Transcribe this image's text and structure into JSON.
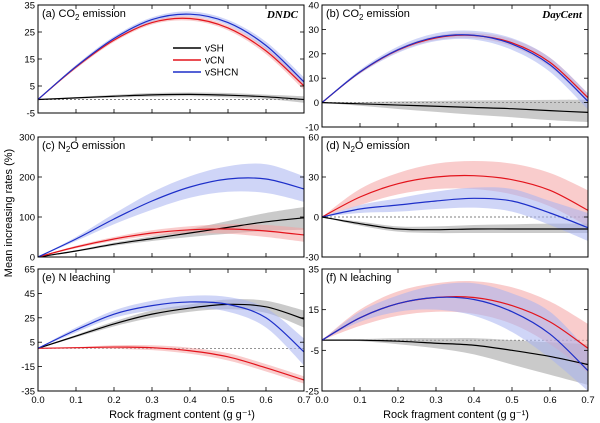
{
  "figure": {
    "ylabel": "Mean increasing rates (%)",
    "xlabel": "Rock fragment content (g g⁻¹)",
    "legend_location": "upper-center of panel (a)"
  },
  "chart_data": [
    {
      "id": "a",
      "type": "line",
      "title_prefix": "(a) CO",
      "title_sub": "2",
      "title_suffix": " emission",
      "model_label": "DNDC",
      "x": [
        0,
        0.1,
        0.2,
        0.3,
        0.4,
        0.5,
        0.6,
        0.7
      ],
      "xlim": [
        0,
        0.7
      ],
      "ylim": [
        -5,
        35
      ],
      "yticks": [
        -5,
        5,
        15,
        25,
        35
      ],
      "series": [
        {
          "name": "vSH",
          "color": "#000000",
          "band_color": "#9e9e9e",
          "values": [
            0,
            0.6,
            1.2,
            1.7,
            1.9,
            1.6,
            1.0,
            0
          ],
          "lower": [
            0,
            0.3,
            0.7,
            1.0,
            1.2,
            0.8,
            0.2,
            -1.2
          ],
          "upper": [
            0,
            0.9,
            1.7,
            2.4,
            2.6,
            2.4,
            1.8,
            1.2
          ]
        },
        {
          "name": "vCN",
          "color": "#e3141c",
          "band_color": "#f4a3a3",
          "values": [
            0,
            12,
            22,
            28.5,
            30,
            26.5,
            18,
            5
          ],
          "lower": [
            0,
            11.4,
            21.3,
            27.8,
            29.2,
            25.6,
            16.8,
            3.5
          ],
          "upper": [
            0,
            12.6,
            22.7,
            29.2,
            30.8,
            27.4,
            19.2,
            6.5
          ]
        },
        {
          "name": "vSHCN",
          "color": "#1d2fc9",
          "band_color": "#a7b3f0",
          "values": [
            0,
            12.2,
            22.6,
            29.6,
            31.6,
            28.5,
            20,
            6.5
          ],
          "lower": [
            0,
            11.6,
            21.8,
            28.8,
            30.8,
            27.5,
            18.6,
            4.8
          ],
          "upper": [
            0,
            12.8,
            23.4,
            30.4,
            32.6,
            29.5,
            21.4,
            8.2
          ]
        }
      ],
      "legend": true
    },
    {
      "id": "b",
      "type": "line",
      "title_prefix": "(b) CO",
      "title_sub": "2",
      "title_suffix": " emission",
      "model_label": "DayCent",
      "x": [
        0,
        0.1,
        0.2,
        0.3,
        0.4,
        0.5,
        0.6,
        0.7
      ],
      "xlim": [
        0,
        0.7
      ],
      "ylim": [
        -10,
        40
      ],
      "yticks": [
        -10,
        0,
        10,
        20,
        30,
        40
      ],
      "series": [
        {
          "name": "vSH",
          "color": "#000000",
          "band_color": "#9e9e9e",
          "values": [
            0,
            -0.5,
            -1,
            -1.5,
            -2,
            -2.5,
            -3.3,
            -4
          ],
          "lower": [
            0,
            -1.3,
            -2.6,
            -3.8,
            -5,
            -6,
            -7.2,
            -8
          ],
          "upper": [
            0,
            0.2,
            0.5,
            0.7,
            0.9,
            1,
            1.1,
            1.2
          ]
        },
        {
          "name": "vCN",
          "color": "#e3141c",
          "band_color": "#f4a3a3",
          "values": [
            0,
            12.5,
            21.5,
            26.5,
            27.5,
            24.5,
            16.5,
            2
          ],
          "lower": [
            0,
            12,
            20.8,
            25.6,
            26.4,
            23,
            14.6,
            0.2
          ],
          "upper": [
            0,
            13,
            22.2,
            27.4,
            28.6,
            26,
            18.4,
            3.8
          ]
        },
        {
          "name": "vSHCN",
          "color": "#1d2fc9",
          "band_color": "#a7b3f0",
          "values": [
            0,
            12.6,
            21.7,
            26.8,
            27.6,
            24,
            15.5,
            0.5
          ],
          "lower": [
            0,
            11.8,
            20.4,
            25.2,
            25.8,
            21.6,
            12.6,
            -2.8
          ],
          "upper": [
            0,
            13.4,
            23,
            28.4,
            29.4,
            26.4,
            18.4,
            3.8
          ]
        }
      ],
      "legend": false
    },
    {
      "id": "c",
      "type": "line",
      "title_prefix": "(c) N",
      "title_sub": "2",
      "title_suffix": "O emission",
      "model_label": "",
      "x": [
        0,
        0.1,
        0.2,
        0.3,
        0.4,
        0.5,
        0.6,
        0.7
      ],
      "xlim": [
        0,
        0.7
      ],
      "ylim": [
        0,
        300
      ],
      "yticks": [
        0,
        100,
        200,
        300
      ],
      "series": [
        {
          "name": "vSH",
          "color": "#000000",
          "band_color": "#9e9e9e",
          "values": [
            0,
            15,
            32,
            46,
            60,
            74,
            88,
            98
          ],
          "lower": [
            0,
            13,
            28,
            40,
            50,
            58,
            65,
            68
          ],
          "upper": [
            0,
            17,
            36,
            52,
            70,
            90,
            110,
            125
          ]
        },
        {
          "name": "vCN",
          "color": "#e3141c",
          "band_color": "#f4a3a3",
          "values": [
            0,
            25,
            45,
            60,
            68,
            70,
            65,
            55
          ],
          "lower": [
            0,
            22,
            40,
            53,
            59,
            58,
            50,
            38
          ],
          "upper": [
            0,
            28,
            50,
            67,
            77,
            82,
            80,
            72
          ]
        },
        {
          "name": "vSHCN",
          "color": "#1d2fc9",
          "band_color": "#a7b3f0",
          "values": [
            0,
            45,
            95,
            140,
            175,
            195,
            195,
            170
          ],
          "lower": [
            0,
            40,
            82,
            118,
            148,
            163,
            160,
            138
          ],
          "upper": [
            0,
            50,
            108,
            162,
            202,
            227,
            232,
            202
          ]
        }
      ],
      "legend": false
    },
    {
      "id": "d",
      "type": "line",
      "title_prefix": "(d) N",
      "title_sub": "2",
      "title_suffix": "O emission",
      "model_label": "",
      "x": [
        0,
        0.1,
        0.2,
        0.3,
        0.4,
        0.5,
        0.6,
        0.7
      ],
      "xlim": [
        0,
        0.7
      ],
      "ylim": [
        -30,
        60
      ],
      "yticks": [
        -30,
        0,
        30,
        60
      ],
      "series": [
        {
          "name": "vSH",
          "color": "#000000",
          "band_color": "#9e9e9e",
          "values": [
            0,
            -5,
            -9,
            -9.5,
            -9,
            -9,
            -9,
            -9
          ],
          "lower": [
            0,
            -6.5,
            -11,
            -12,
            -12,
            -12,
            -12,
            -12
          ],
          "upper": [
            0,
            -3.5,
            -7,
            -7,
            -6,
            -5.5,
            -5,
            -5
          ]
        },
        {
          "name": "vCN",
          "color": "#e3141c",
          "band_color": "#f4a3a3",
          "values": [
            0,
            15,
            25,
            30,
            31,
            28,
            20,
            5
          ],
          "lower": [
            0,
            9,
            17,
            21,
            21,
            17,
            8,
            -7
          ],
          "upper": [
            0,
            21,
            33,
            40,
            42,
            40,
            33,
            20
          ]
        },
        {
          "name": "vSHCN",
          "color": "#1d2fc9",
          "band_color": "#a7b3f0",
          "values": [
            0,
            6,
            9,
            12,
            14,
            12,
            3,
            -8
          ],
          "lower": [
            0,
            3,
            4,
            6,
            7,
            4,
            -6,
            -18
          ],
          "upper": [
            0,
            9,
            14,
            19,
            22,
            21,
            12,
            3
          ]
        }
      ],
      "legend": false
    },
    {
      "id": "e",
      "type": "line",
      "title_prefix": "(e) N leaching",
      "title_sub": "",
      "title_suffix": "",
      "model_label": "",
      "x": [
        0,
        0.1,
        0.2,
        0.3,
        0.4,
        0.5,
        0.6,
        0.7
      ],
      "xlim": [
        0,
        0.7
      ],
      "ylim": [
        -35,
        65
      ],
      "yticks": [
        -35,
        -15,
        5,
        25,
        45,
        65
      ],
      "series": [
        {
          "name": "vSH",
          "color": "#000000",
          "band_color": "#9e9e9e",
          "values": [
            0,
            10,
            20,
            28,
            33,
            36,
            34,
            24
          ],
          "lower": [
            0,
            9,
            18,
            25,
            30,
            32,
            29,
            17
          ],
          "upper": [
            0,
            11,
            22,
            31,
            36,
            40,
            39,
            31
          ]
        },
        {
          "name": "vCN",
          "color": "#e3141c",
          "band_color": "#f4a3a3",
          "values": [
            0,
            0.5,
            1,
            0.5,
            -2,
            -7,
            -16,
            -26
          ],
          "lower": [
            0,
            0,
            -0.5,
            -1.5,
            -4.5,
            -10,
            -19,
            -29
          ],
          "upper": [
            0,
            1,
            2.5,
            2.5,
            0.5,
            -4,
            -13,
            -23
          ]
        },
        {
          "name": "vSHCN",
          "color": "#1d2fc9",
          "band_color": "#a7b3f0",
          "values": [
            0,
            15,
            28,
            35,
            38,
            36,
            25,
            -3
          ],
          "lower": [
            0,
            13,
            25,
            31,
            33,
            30,
            17,
            -14
          ],
          "upper": [
            0,
            17,
            31,
            39,
            43,
            42,
            33,
            8
          ]
        }
      ],
      "legend": false
    },
    {
      "id": "f",
      "type": "line",
      "title_prefix": "(f) N leaching",
      "title_sub": "",
      "title_suffix": "",
      "model_label": "",
      "x": [
        0,
        0.1,
        0.2,
        0.3,
        0.4,
        0.5,
        0.6,
        0.7
      ],
      "xlim": [
        0,
        0.7
      ],
      "ylim": [
        -25,
        35
      ],
      "yticks": [
        -25,
        -5,
        15,
        35
      ],
      "series": [
        {
          "name": "vSH",
          "color": "#000000",
          "band_color": "#9e9e9e",
          "values": [
            0,
            0,
            -0.5,
            -1.5,
            -2.5,
            -5,
            -8,
            -12
          ],
          "lower": [
            0,
            -0.5,
            -2,
            -4,
            -7,
            -12,
            -17,
            -22
          ],
          "upper": [
            0,
            0.5,
            1,
            1,
            1,
            0,
            -1,
            -2
          ]
        },
        {
          "name": "vCN",
          "color": "#e3141c",
          "band_color": "#f4a3a3",
          "values": [
            0,
            11,
            18,
            21,
            21,
            17,
            9,
            -4
          ],
          "lower": [
            0,
            7,
            12,
            14,
            13,
            8,
            -2,
            -16
          ],
          "upper": [
            0,
            15,
            24,
            28,
            29,
            26,
            19,
            8
          ]
        },
        {
          "name": "vSHCN",
          "color": "#1d2fc9",
          "band_color": "#a7b3f0",
          "values": [
            0,
            11,
            18,
            21,
            20,
            14,
            3,
            -15
          ],
          "lower": [
            0,
            9,
            14,
            15,
            12,
            4,
            -9,
            -25
          ],
          "upper": [
            0,
            14,
            22,
            27,
            28,
            23,
            14,
            -5
          ]
        }
      ],
      "legend": false
    }
  ]
}
